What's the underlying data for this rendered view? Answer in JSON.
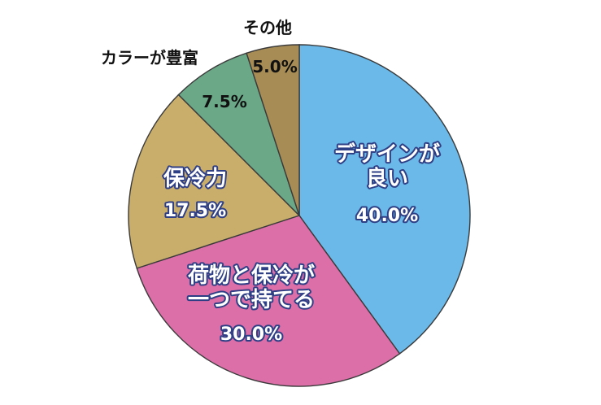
{
  "chart_data": {
    "type": "pie",
    "start": "12 o'clock",
    "direction": "clockwise",
    "slices": [
      {
        "label": "デザインが良い",
        "label_lines": [
          "デザインが",
          "良い"
        ],
        "value": 40.0,
        "value_text": "40.0%",
        "color": "#6bb9e8"
      },
      {
        "label": "荷物と保冷が一つで持てる",
        "label_lines": [
          "荷物と保冷が",
          "一つで持てる"
        ],
        "value": 30.0,
        "value_text": "30.0%",
        "color": "#dc6ea8"
      },
      {
        "label": "保冷力",
        "label_lines": [
          "保冷力"
        ],
        "value": 17.5,
        "value_text": "17.5%",
        "color": "#c9ad6b"
      },
      {
        "label": "カラーが豊富",
        "label_lines": [
          "カラーが豊富"
        ],
        "value": 7.5,
        "value_text": "7.5%",
        "color": "#6aa888"
      },
      {
        "label": "その他",
        "label_lines": [
          "その他"
        ],
        "value": 5.0,
        "value_text": "5.0%",
        "color": "#a88c55"
      }
    ]
  }
}
